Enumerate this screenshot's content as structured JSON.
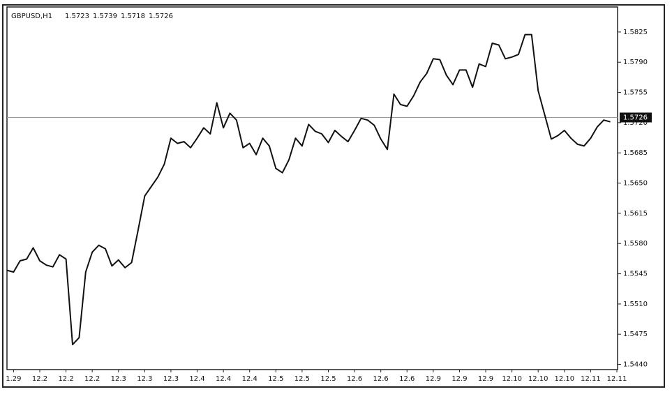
{
  "chart_data": {
    "type": "line",
    "title": "GBPUSD,H1",
    "ohlc": [
      1.5723,
      1.5739,
      1.5718,
      1.5726
    ],
    "last_price": 1.5726,
    "color": "#111111",
    "grid": false,
    "categories": [
      null,
      "1.29",
      null,
      null,
      null,
      "12.2",
      null,
      null,
      null,
      "12.2",
      null,
      null,
      null,
      "12.2",
      null,
      null,
      null,
      "12.3",
      null,
      null,
      null,
      "12.3",
      null,
      null,
      null,
      "12.3",
      null,
      null,
      null,
      "12.4",
      null,
      null,
      null,
      "12.4",
      null,
      null,
      null,
      "12.4",
      null,
      null,
      null,
      "12.5",
      null,
      null,
      null,
      "12.5",
      null,
      null,
      null,
      "12.5",
      null,
      null,
      null,
      "12.6",
      null,
      null,
      null,
      "12.6",
      null,
      null,
      null,
      "12.6",
      null,
      null,
      null,
      "12.9",
      null,
      null,
      null,
      "12.9",
      null,
      null,
      null,
      "12.9",
      null,
      null,
      null,
      "12.10",
      null,
      null,
      null,
      "12.10",
      null,
      null,
      null,
      "12.10",
      null,
      null,
      null,
      "12.11",
      null,
      null,
      null,
      "12.11"
    ],
    "values": [
      1.5549,
      1.5547,
      1.556,
      1.5562,
      1.5575,
      1.556,
      1.5555,
      1.5553,
      1.5567,
      1.5562,
      1.5463,
      1.5471,
      1.5547,
      1.557,
      1.5578,
      1.5574,
      1.5554,
      1.5561,
      1.5552,
      1.5558,
      1.5596,
      1.5635,
      1.5646,
      1.5657,
      1.5672,
      1.5702,
      1.5696,
      1.5698,
      1.5691,
      1.5702,
      1.5714,
      1.5707,
      1.5743,
      1.5714,
      1.5731,
      1.5723,
      1.5691,
      1.5696,
      1.5683,
      1.5702,
      1.5693,
      1.5667,
      1.5662,
      1.5677,
      1.5702,
      1.5693,
      1.5718,
      1.571,
      1.5707,
      1.5697,
      1.5711,
      1.5704,
      1.5698,
      1.5711,
      1.5725,
      1.5723,
      1.5717,
      1.5701,
      1.5689,
      1.5753,
      1.5741,
      1.5739,
      1.5751,
      1.5767,
      1.5777,
      1.5794,
      1.5793,
      1.5775,
      1.5764,
      1.5781,
      1.5781,
      1.5761,
      1.5788,
      1.5785,
      1.5812,
      1.581,
      1.5794,
      1.5796,
      1.5799,
      1.5822,
      1.5822,
      1.5757,
      1.5729,
      1.5701,
      1.5705,
      1.5711,
      1.5702,
      1.5695,
      1.5693,
      1.5702,
      1.5715,
      1.5723,
      1.5721,
      null
    ],
    "ylim": [
      1.5434,
      1.5854
    ],
    "yticks": [
      1.5825,
      {
        "value": 1.579,
        "label": "1.5790"
      },
      1.5755,
      {
        "value": 1.572,
        "label": "1.5720"
      },
      1.5685,
      {
        "value": 1.565,
        "label": "1.5650"
      },
      1.5615,
      {
        "value": 1.558,
        "label": "1.5580"
      },
      1.5545,
      {
        "value": 1.551,
        "label": "1.5510"
      },
      1.5475,
      {
        "value": 1.544,
        "label": "1.5440"
      }
    ]
  }
}
